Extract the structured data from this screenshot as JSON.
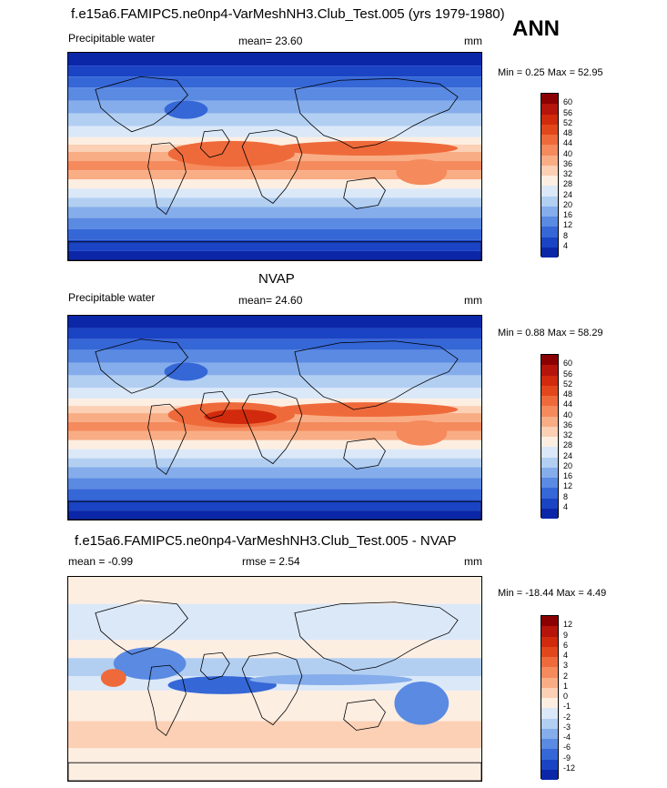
{
  "chart_data": [
    {
      "type": "heatmap",
      "title": "f.e15a6.FAMIPC5.ne0np4-VarMeshNH3.Club_Test.005 (yrs 1979-1980)",
      "season": "ANN",
      "left_label": "Precipitable water",
      "center_label": "mean=  23.60",
      "right_label": "mm",
      "minmax": "Min =   0.25 Max =  52.95",
      "colorbar_ticks": [
        "60",
        "56",
        "52",
        "48",
        "44",
        "40",
        "36",
        "32",
        "28",
        "24",
        "20",
        "16",
        "12",
        "8",
        "4"
      ],
      "colors": [
        "#8b0000",
        "#b5150a",
        "#d12a0d",
        "#e2471b",
        "#ef6a3a",
        "#f58a5c",
        "#f9ad85",
        "#fbd0b5",
        "#fdeee2",
        "#dbe8f8",
        "#b2cff2",
        "#85adeb",
        "#5a8ae2",
        "#3567d7",
        "#1a44c4",
        "#0b27a8"
      ]
    },
    {
      "type": "heatmap",
      "title": "NVAP",
      "left_label": "Precipitable water",
      "center_label": "mean=  24.60",
      "right_label": "mm",
      "minmax": "Min =   0.88 Max =  58.29",
      "colorbar_ticks": [
        "60",
        "56",
        "52",
        "48",
        "44",
        "40",
        "36",
        "32",
        "28",
        "24",
        "20",
        "16",
        "12",
        "8",
        "4"
      ],
      "colors": [
        "#8b0000",
        "#b5150a",
        "#d12a0d",
        "#e2471b",
        "#ef6a3a",
        "#f58a5c",
        "#f9ad85",
        "#fbd0b5",
        "#fdeee2",
        "#dbe8f8",
        "#b2cff2",
        "#85adeb",
        "#5a8ae2",
        "#3567d7",
        "#1a44c4",
        "#0b27a8"
      ]
    },
    {
      "type": "heatmap",
      "title": "f.e15a6.FAMIPC5.ne0np4-VarMeshNH3.Club_Test.005 - NVAP",
      "left_label": "mean =  -0.99",
      "center_label": "rmse =   2.54",
      "right_label": "mm",
      "minmax": "Min = -18.44 Max =   4.49",
      "colorbar_ticks": [
        "12",
        "9",
        "6",
        "4",
        "3",
        "2",
        "1",
        "0",
        "-1",
        "-2",
        "-3",
        "-4",
        "-6",
        "-9",
        "-12"
      ],
      "colors": [
        "#8b0000",
        "#b5150a",
        "#d12a0d",
        "#e2471b",
        "#ef6a3a",
        "#f58a5c",
        "#f9ad85",
        "#fbd0b5",
        "#fdeee2",
        "#dbe8f8",
        "#b2cff2",
        "#85adeb",
        "#5a8ae2",
        "#3567d7",
        "#1a44c4",
        "#0b27a8"
      ]
    }
  ]
}
